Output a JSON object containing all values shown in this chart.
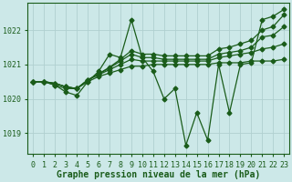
{
  "xlabel": "Graphe pression niveau de la mer (hPa)",
  "bg_color": "#cce8e8",
  "line_color": "#1a5c1a",
  "grid_color": "#b0d0d0",
  "ylim": [
    1018.4,
    1022.8
  ],
  "xlim": [
    -0.5,
    23.5
  ],
  "yticks": [
    1019,
    1020,
    1021,
    1022
  ],
  "xticks": [
    0,
    1,
    2,
    3,
    4,
    5,
    6,
    7,
    8,
    9,
    10,
    11,
    12,
    13,
    14,
    15,
    16,
    17,
    18,
    19,
    20,
    21,
    22,
    23
  ],
  "lines": [
    {
      "x": [
        0,
        1,
        2,
        3,
        4,
        5,
        6,
        7,
        8,
        9,
        10,
        11,
        12,
        13,
        14,
        15,
        16,
        17,
        18,
        19,
        20,
        21,
        22,
        23
      ],
      "y": [
        1020.5,
        1020.5,
        1020.4,
        1020.2,
        1020.1,
        1020.5,
        1020.8,
        1021.3,
        1021.2,
        1022.3,
        1021.2,
        1020.8,
        1020.0,
        1020.3,
        1018.65,
        1019.6,
        1018.8,
        1021.0,
        1019.6,
        1021.0,
        1021.05,
        1022.3,
        1022.4,
        1022.6
      ]
    },
    {
      "x": [
        0,
        1,
        2,
        3,
        4,
        5,
        6,
        7,
        8,
        9,
        10,
        11,
        12,
        13,
        14,
        15,
        16,
        17,
        18,
        19,
        20,
        21,
        22,
        23
      ],
      "y": [
        1020.5,
        1020.5,
        1020.4,
        1020.3,
        1020.3,
        1020.5,
        1020.65,
        1020.75,
        1020.85,
        1020.95,
        1020.95,
        1021.0,
        1021.0,
        1021.0,
        1021.0,
        1021.0,
        1021.0,
        1021.05,
        1021.05,
        1021.05,
        1021.1,
        1021.1,
        1021.1,
        1021.15
      ]
    },
    {
      "x": [
        0,
        1,
        2,
        3,
        4,
        5,
        6,
        7,
        8,
        9,
        10,
        11,
        12,
        13,
        14,
        15,
        16,
        17,
        18,
        19,
        20,
        21,
        22,
        23
      ],
      "y": [
        1020.5,
        1020.5,
        1020.45,
        1020.35,
        1020.3,
        1020.55,
        1020.7,
        1020.85,
        1021.0,
        1021.15,
        1021.1,
        1021.1,
        1021.1,
        1021.1,
        1021.1,
        1021.1,
        1021.1,
        1021.2,
        1021.25,
        1021.3,
        1021.35,
        1021.45,
        1021.5,
        1021.6
      ]
    },
    {
      "x": [
        0,
        1,
        2,
        3,
        4,
        5,
        6,
        7,
        8,
        9,
        10,
        11,
        12,
        13,
        14,
        15,
        16,
        17,
        18,
        19,
        20,
        21,
        22,
        23
      ],
      "y": [
        1020.5,
        1020.5,
        1020.45,
        1020.35,
        1020.3,
        1020.55,
        1020.72,
        1020.9,
        1021.1,
        1021.3,
        1021.2,
        1021.2,
        1021.15,
        1021.15,
        1021.15,
        1021.15,
        1021.15,
        1021.3,
        1021.35,
        1021.4,
        1021.5,
        1021.8,
        1021.85,
        1022.1
      ]
    },
    {
      "x": [
        0,
        1,
        2,
        3,
        4,
        5,
        6,
        7,
        8,
        9,
        10,
        11,
        12,
        13,
        14,
        15,
        16,
        17,
        18,
        19,
        20,
        21,
        22,
        23
      ],
      "y": [
        1020.5,
        1020.5,
        1020.45,
        1020.35,
        1020.3,
        1020.55,
        1020.73,
        1020.92,
        1021.15,
        1021.4,
        1021.3,
        1021.3,
        1021.25,
        1021.25,
        1021.25,
        1021.25,
        1021.25,
        1021.45,
        1021.5,
        1021.6,
        1021.7,
        1022.0,
        1022.1,
        1022.45
      ]
    }
  ],
  "marker": "D",
  "markersize": 2.5,
  "linewidth": 0.9,
  "xlabel_fontsize": 7,
  "tick_fontsize": 6,
  "tick_color": "#1a5c1a",
  "axis_color": "#1a5c1a"
}
